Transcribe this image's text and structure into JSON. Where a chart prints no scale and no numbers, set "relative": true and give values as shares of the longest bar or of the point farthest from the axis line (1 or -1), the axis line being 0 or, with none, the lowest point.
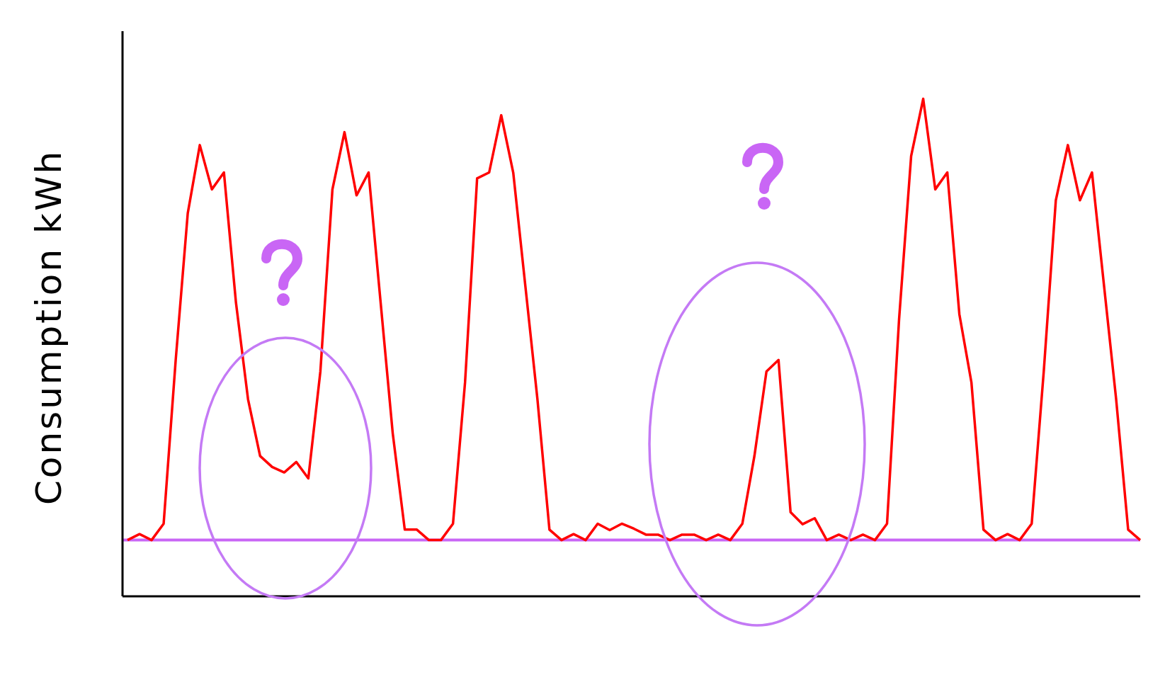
{
  "chart_data": {
    "type": "line",
    "ylabel": "Consumption kWh",
    "relative": true,
    "categories": [
      null,
      null,
      null,
      null,
      null,
      null,
      null,
      null,
      null,
      null,
      null,
      null,
      null,
      null,
      null,
      null,
      null,
      null,
      null,
      null,
      null,
      null,
      null,
      null,
      null,
      null,
      null,
      null,
      null,
      null,
      null,
      null,
      null,
      null,
      null,
      null,
      null,
      null,
      null,
      null,
      null,
      null,
      null,
      null,
      null,
      null,
      null,
      null,
      null,
      null,
      null,
      null,
      null,
      null,
      null,
      null,
      null,
      null,
      null,
      null,
      null,
      null,
      null,
      null,
      null,
      null,
      null,
      null,
      null,
      null,
      null,
      null,
      null,
      null,
      null,
      null,
      null,
      null,
      null,
      null,
      null,
      null,
      null,
      null,
      null
    ],
    "series": [
      {
        "color": "#ff0000",
        "values": [
          0.113,
          0.125,
          0.113,
          0.146,
          0.475,
          0.77,
          0.907,
          0.818,
          0.852,
          0.59,
          0.396,
          0.282,
          0.26,
          0.249,
          0.27,
          0.237,
          0.452,
          0.818,
          0.933,
          0.806,
          0.852,
          0.59,
          0.328,
          0.134,
          0.134,
          0.113,
          0.113,
          0.146,
          0.43,
          0.84,
          0.852,
          0.967,
          0.851,
          0.624,
          0.397,
          0.134,
          0.113,
          0.125,
          0.113,
          0.146,
          0.133,
          0.146,
          0.136,
          0.124,
          0.124,
          0.113,
          0.124,
          0.124,
          0.113,
          0.124,
          0.113,
          0.146,
          0.282,
          0.452,
          0.475,
          0.169,
          0.145,
          0.157,
          0.113,
          0.124,
          0.113,
          0.124,
          0.113,
          0.146,
          0.557,
          0.885,
          1,
          0.818,
          0.852,
          0.567,
          0.43,
          0.134,
          0.113,
          0.125,
          0.113,
          0.146,
          0.452,
          0.796,
          0.907,
          0.796,
          0.852,
          0.624,
          0.397,
          0.134,
          0.113
        ]
      }
    ],
    "ref_lines": [
      {
        "axis": "y",
        "value": 0.113,
        "color": "#c966f5"
      }
    ],
    "grid": false,
    "legend": false,
    "marker": "none",
    "line_style": "solid"
  }
}
